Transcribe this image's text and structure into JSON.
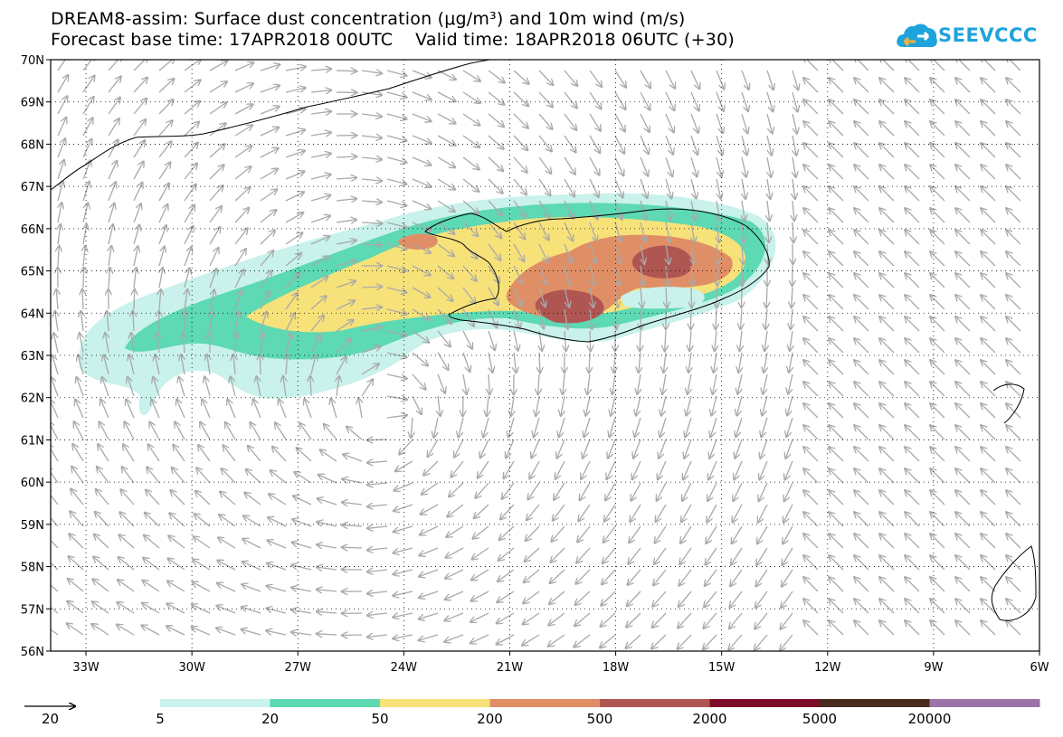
{
  "title": {
    "line1": "DREAM8-assim: Surface dust concentration (μg/m³) and 10m wind (m/s)",
    "line2": "Forecast base time: 17APR2018 00UTC    Valid time: 18APR2018 06UTC (+30)"
  },
  "logo": {
    "text": "SEEVCCC",
    "icon": "cloud-icon",
    "color": "#1fa3dc"
  },
  "map": {
    "lat_range": [
      56,
      70
    ],
    "lon_range": [
      -34,
      -6
    ],
    "lat_labels": [
      "70N",
      "69N",
      "68N",
      "67N",
      "66N",
      "65N",
      "64N",
      "63N",
      "62N",
      "61N",
      "60N",
      "59N",
      "58N",
      "57N",
      "56N"
    ],
    "lon_labels": [
      "33W",
      "30W",
      "27W",
      "24W",
      "21W",
      "18W",
      "15W",
      "12W",
      "9W",
      "6W"
    ],
    "gridlines": "dotted"
  },
  "colorbar": {
    "labels": [
      "5",
      "20",
      "50",
      "200",
      "500",
      "2000",
      "5000",
      "20000"
    ],
    "colors": [
      "#c8f2eb",
      "#5dd9b3",
      "#f7e27a",
      "#e08e66",
      "#b05652",
      "#7b0d2a",
      "#4a2a1c",
      "#9c73a6"
    ]
  },
  "reference_arrow": {
    "label": "20"
  }
}
